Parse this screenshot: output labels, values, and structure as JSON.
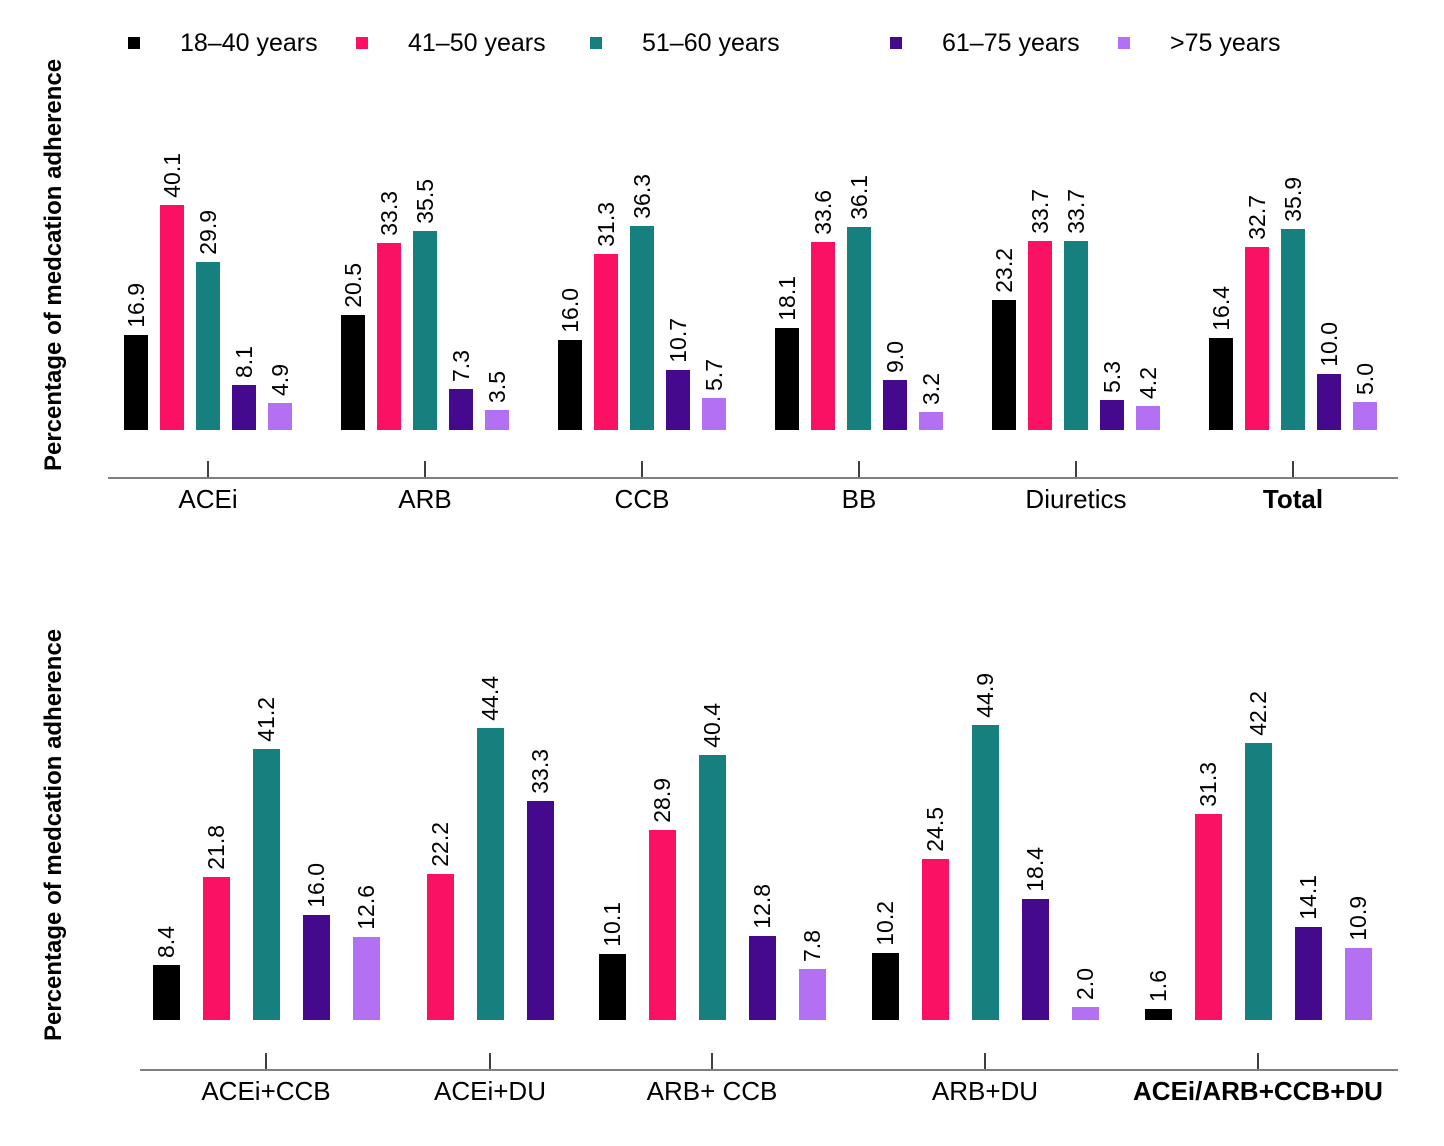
{
  "figure": {
    "y_axis_label": "Percentage of medcation adherence"
  },
  "legend": {
    "items": [
      {
        "label": "18–40 years",
        "color": "#000000"
      },
      {
        "label": "41–50 years",
        "color": "#FA1164"
      },
      {
        "label": "51–60 years",
        "color": "#15807D"
      },
      {
        "label": "61–75 years",
        "color": "#44098D"
      },
      {
        "label": ">75 years",
        "color": "#B470F2"
      }
    ]
  },
  "chart_data": [
    {
      "type": "bar",
      "title": "",
      "xlabel": "",
      "ylabel": "Percentage of medcation adherence",
      "ylim": [
        0,
        45
      ],
      "grid": false,
      "legend_position": "top",
      "value_labels": true,
      "categories": [
        "ACEi",
        "ARB",
        "CCB",
        "BB",
        "Diuretics",
        "Total"
      ],
      "bold_categories": [
        "Total"
      ],
      "series": [
        {
          "name": "18–40 years",
          "color": "#000000",
          "values": [
            16.9,
            20.5,
            16.0,
            18.1,
            23.2,
            16.4
          ]
        },
        {
          "name": "41–50 years",
          "color": "#FA1164",
          "values": [
            40.1,
            33.3,
            31.3,
            33.6,
            33.7,
            32.7
          ]
        },
        {
          "name": "51–60 years",
          "color": "#15807D",
          "values": [
            29.9,
            35.5,
            36.3,
            36.1,
            33.7,
            35.9
          ]
        },
        {
          "name": "61–75 years",
          "color": "#44098D",
          "values": [
            8.1,
            7.3,
            10.7,
            9.0,
            5.3,
            10.0
          ]
        },
        {
          "name": ">75 years",
          "color": "#B470F2",
          "values": [
            4.9,
            3.5,
            5.7,
            3.2,
            4.2,
            5.0
          ]
        }
      ]
    },
    {
      "type": "bar",
      "title": "",
      "xlabel": "",
      "ylabel": "Percentage of medcation adherence",
      "ylim": [
        0,
        45
      ],
      "grid": false,
      "legend_position": "none",
      "value_labels": true,
      "categories": [
        "ACEi+CCB",
        "ACEi+DU",
        "ARB+ CCB",
        "ARB+DU",
        "ACEi/ARB+CCB+DU"
      ],
      "bold_categories": [
        "ACEi/ARB+CCB+DU"
      ],
      "series": [
        {
          "name": "18–40 years",
          "color": "#000000",
          "values": [
            8.4,
            null,
            10.1,
            10.2,
            1.6
          ]
        },
        {
          "name": "41–50 years",
          "color": "#FA1164",
          "values": [
            21.8,
            22.2,
            28.9,
            24.5,
            31.3
          ]
        },
        {
          "name": "51–60 years",
          "color": "#15807D",
          "values": [
            41.2,
            44.4,
            40.4,
            44.9,
            42.2
          ]
        },
        {
          "name": "61–75 years",
          "color": "#44098D",
          "values": [
            16.0,
            33.3,
            12.8,
            18.4,
            14.1
          ]
        },
        {
          "name": ">75 years",
          "color": "#B470F2",
          "values": [
            12.6,
            null,
            7.8,
            2.0,
            10.9
          ]
        }
      ]
    }
  ]
}
